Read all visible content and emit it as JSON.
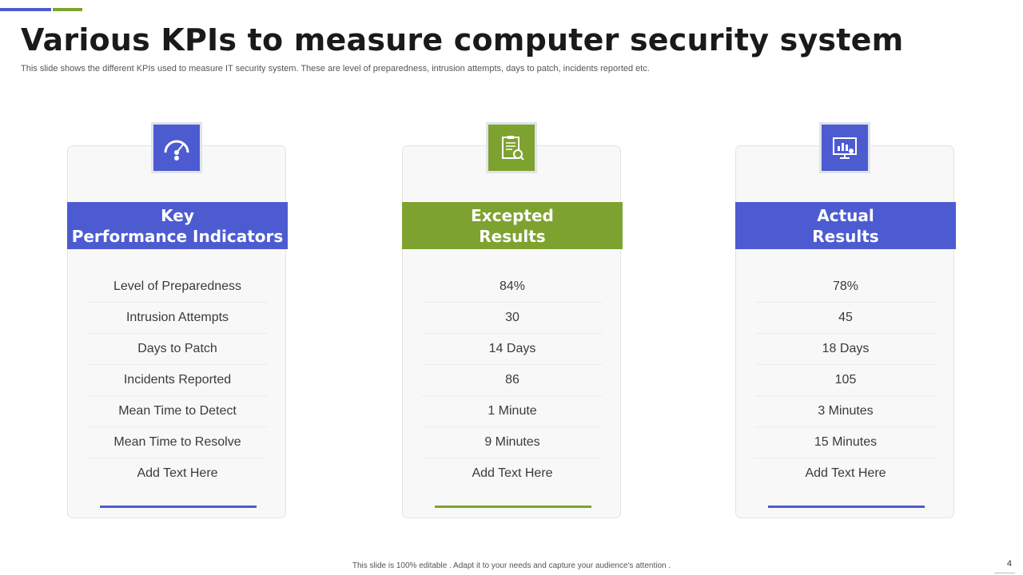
{
  "colors": {
    "blue": "#4d5bd1",
    "green": "#7ea22f"
  },
  "header": {
    "title": "Various KPIs to measure computer security system",
    "subtitle": "This slide shows the different KPIs used to measure IT security system. These are level of preparedness, intrusion attempts, days to patch, incidents reported etc."
  },
  "columns": [
    {
      "icon": "gauge-icon",
      "heading_line1": "Key",
      "heading_line2": "Performance Indicators",
      "rows": [
        "Level of Preparedness",
        "Intrusion  Attempts",
        "Days to Patch",
        "Incidents Reported",
        "Mean Time to Detect",
        "Mean Time to Resolve",
        "Add Text Here"
      ]
    },
    {
      "icon": "clipboard-check-icon",
      "heading_line1": "Excepted",
      "heading_line2": "Results",
      "rows": [
        "84%",
        "30",
        "14 Days",
        "86",
        "1 Minute",
        "9 Minutes",
        "Add Text Here"
      ]
    },
    {
      "icon": "monitor-chart-icon",
      "heading_line1": "Actual",
      "heading_line2": "Results",
      "rows": [
        "78%",
        "45",
        "18 Days",
        "105",
        "3 Minutes",
        "15 Minutes",
        "Add Text Here"
      ]
    }
  ],
  "footer": {
    "note": "This slide is 100% editable . Adapt it to your needs and capture your audience's attention .",
    "page_number": "4"
  }
}
